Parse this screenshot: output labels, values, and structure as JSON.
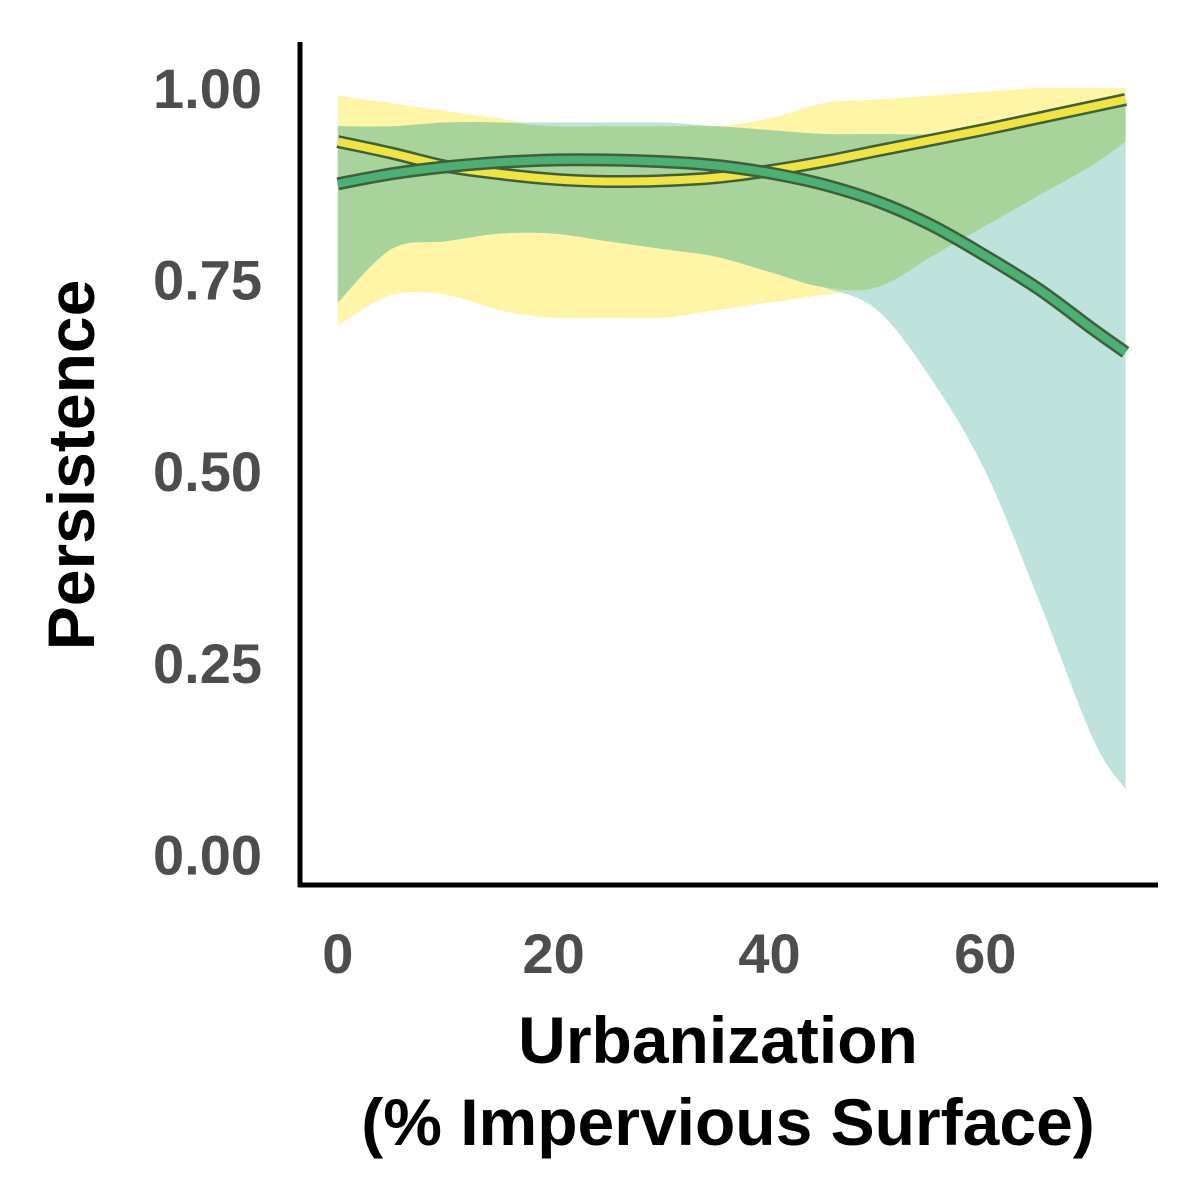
{
  "chart_data": {
    "type": "line",
    "title": "",
    "xlabel": [
      "Urbanization",
      "(% Impervious Surface)"
    ],
    "ylabel": "Persistence",
    "xlim": [
      -3.5,
      76
    ],
    "ylim": [
      -0.04,
      1.06
    ],
    "x_ticks": [
      "0",
      "20",
      "40",
      "60"
    ],
    "y_ticks": [
      "0.00",
      "0.25",
      "0.50",
      "0.75",
      "1.00"
    ],
    "grid": false,
    "legend": "none",
    "series": [
      {
        "color": "#f0e442",
        "band_color": "#fff5a6",
        "x": [
          0,
          5,
          10,
          15,
          20,
          25,
          30,
          35,
          40,
          45,
          50,
          55,
          60,
          65,
          70,
          73
        ],
        "y": [
          0.93,
          0.915,
          0.898,
          0.888,
          0.881,
          0.878,
          0.879,
          0.883,
          0.892,
          0.904,
          0.918,
          0.932,
          0.946,
          0.961,
          0.976,
          0.985
        ],
        "lower": [
          0.69,
          0.73,
          0.73,
          0.71,
          0.7,
          0.7,
          0.7,
          0.71,
          0.72,
          0.73,
          0.74,
          0.78,
          0.82,
          0.86,
          0.9,
          0.93
        ],
        "upper": [
          0.99,
          0.98,
          0.97,
          0.96,
          0.95,
          0.95,
          0.95,
          0.95,
          0.96,
          0.98,
          0.985,
          0.99,
          0.995,
          1.0,
          1.0,
          1.0
        ]
      },
      {
        "color": "#4caf73",
        "band_color": "#a8d8d0",
        "x": [
          0,
          5,
          10,
          15,
          20,
          25,
          30,
          35,
          40,
          45,
          50,
          55,
          60,
          65,
          70,
          73
        ],
        "y": [
          0.875,
          0.888,
          0.897,
          0.903,
          0.906,
          0.906,
          0.904,
          0.899,
          0.889,
          0.874,
          0.852,
          0.821,
          0.781,
          0.737,
          0.685,
          0.655
        ],
        "lower": [
          0.72,
          0.79,
          0.8,
          0.81,
          0.81,
          0.8,
          0.79,
          0.78,
          0.76,
          0.74,
          0.71,
          0.62,
          0.5,
          0.33,
          0.15,
          0.085
        ],
        "upper": [
          0.95,
          0.95,
          0.955,
          0.955,
          0.955,
          0.955,
          0.955,
          0.95,
          0.945,
          0.94,
          0.94,
          0.94,
          0.95,
          0.96,
          0.975,
          0.98
        ]
      }
    ]
  }
}
